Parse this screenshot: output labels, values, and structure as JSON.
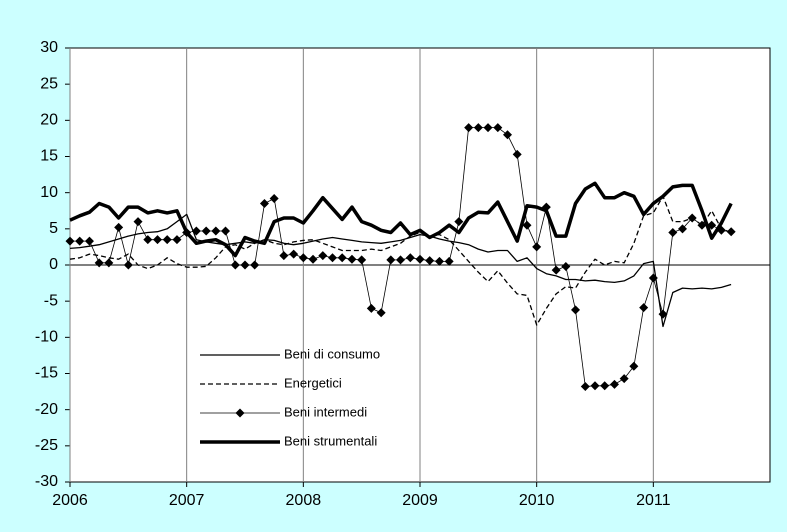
{
  "chart_data": {
    "type": "line",
    "x": [
      2006,
      2006.083,
      2006.167,
      2006.25,
      2006.333,
      2006.417,
      2006.5,
      2006.583,
      2006.667,
      2006.75,
      2006.833,
      2006.917,
      2007,
      2007.083,
      2007.167,
      2007.25,
      2007.333,
      2007.417,
      2007.5,
      2007.583,
      2007.667,
      2007.75,
      2007.833,
      2007.917,
      2008,
      2008.083,
      2008.167,
      2008.25,
      2008.333,
      2008.417,
      2008.5,
      2008.583,
      2008.667,
      2008.75,
      2008.833,
      2008.917,
      2009,
      2009.083,
      2009.167,
      2009.25,
      2009.333,
      2009.417,
      2009.5,
      2009.583,
      2009.667,
      2009.75,
      2009.833,
      2009.917,
      2010,
      2010.083,
      2010.167,
      2010.25,
      2010.333,
      2010.417,
      2010.5,
      2010.583,
      2010.667,
      2010.75,
      2010.833,
      2010.917,
      2011,
      2011.083,
      2011.167,
      2011.25,
      2011.333,
      2011.417,
      2011.5,
      2011.583,
      2011.667
    ],
    "series": [
      {
        "name": "Beni di consumo",
        "color": "#000000",
        "linestyle": "solid",
        "linewidth": 1.3,
        "marker": null,
        "values": [
          2.3,
          2.4,
          2.6,
          2.8,
          3.2,
          3.6,
          4.0,
          4.3,
          4.5,
          4.6,
          5.0,
          6.0,
          7.0,
          3.5,
          3.2,
          3.0,
          2.8,
          3.0,
          3.2,
          3.0,
          3.5,
          3.4,
          3.0,
          2.8,
          3.0,
          3.3,
          3.6,
          3.8,
          3.6,
          3.4,
          3.2,
          3.1,
          3.0,
          3.2,
          3.4,
          3.8,
          4.2,
          4.0,
          3.6,
          3.3,
          3.1,
          2.8,
          2.2,
          1.8,
          2.0,
          2.0,
          0.5,
          1.0,
          -0.5,
          -1.2,
          -1.5,
          -2.0,
          -2.0,
          -2.2,
          -2.1,
          -2.3,
          -2.4,
          -2.2,
          -1.5,
          0.2,
          0.5,
          -8.5,
          -3.8,
          -3.2,
          -3.3,
          -3.2,
          -3.3,
          -3.1,
          -2.7
        ]
      },
      {
        "name": "Energetici",
        "color": "#000000",
        "linestyle": "dashed",
        "linewidth": 1.3,
        "marker": null,
        "values": [
          0.8,
          1.0,
          1.5,
          1.3,
          1.0,
          0.8,
          1.5,
          0,
          -0.5,
          0,
          1.0,
          0.2,
          -0.3,
          -0.3,
          -0.2,
          1.0,
          2.5,
          2.8,
          2.2,
          3.0,
          3.5,
          3.0,
          2.8,
          3.2,
          3.4,
          3.5,
          3.0,
          2.5,
          2.0,
          2.0,
          2.0,
          2.2,
          2.0,
          2.5,
          3.0,
          4.0,
          4.5,
          4.0,
          4.2,
          3.5,
          2.0,
          0.5,
          -1.0,
          -2.3,
          -0.8,
          -2.5,
          -4.0,
          -4.2,
          -8.3,
          -6.0,
          -4.0,
          -3.0,
          -3.2,
          -1.0,
          0.8,
          0,
          0.5,
          0.3,
          3.0,
          6.8,
          7.2,
          9.5,
          6.0,
          6.0,
          6.5,
          5.5,
          7.5,
          5.0,
          4.5
        ]
      },
      {
        "name": "Beni intermedi",
        "color": "#000000",
        "linestyle": "solid",
        "linewidth": 0.8,
        "marker": "diamond",
        "values": [
          3.3,
          3.3,
          3.3,
          0.3,
          0.3,
          5.2,
          0,
          6.0,
          3.5,
          3.5,
          3.5,
          3.5,
          4.5,
          4.7,
          4.7,
          4.7,
          4.7,
          0,
          0,
          0,
          8.5,
          9.2,
          1.3,
          1.5,
          1.0,
          0.8,
          1.3,
          1.0,
          1.0,
          0.8,
          0.7,
          -6.0,
          -6.6,
          0.7,
          0.7,
          1.0,
          0.8,
          0.6,
          0.5,
          0.5,
          6.0,
          19.0,
          19.0,
          19.0,
          19.0,
          18.0,
          15.3,
          5.5,
          2.5,
          8.0,
          -0.7,
          -0.2,
          -6.2,
          -16.8,
          -16.7,
          -16.7,
          -16.5,
          -15.7,
          -14.0,
          -5.9,
          -1.8,
          -6.8,
          4.5,
          5.0,
          6.5,
          5.5,
          5.5,
          4.8,
          4.6
        ]
      },
      {
        "name": "Beni strumentali",
        "color": "#000000",
        "linestyle": "solid",
        "linewidth": 3.5,
        "marker": null,
        "values": [
          6.2,
          6.8,
          7.3,
          8.5,
          8.0,
          6.5,
          8.0,
          8.0,
          7.2,
          7.5,
          7.2,
          7.5,
          4.5,
          3.0,
          3.3,
          3.5,
          2.8,
          1.3,
          3.8,
          3.3,
          3.0,
          6.0,
          6.5,
          6.5,
          5.8,
          7.5,
          9.3,
          7.8,
          6.3,
          8.0,
          6.0,
          5.5,
          4.8,
          4.5,
          5.8,
          4.2,
          4.8,
          3.8,
          4.5,
          5.5,
          4.5,
          6.5,
          7.3,
          7.2,
          8.7,
          6.0,
          3.3,
          8.2,
          8.0,
          7.5,
          4.0,
          4.0,
          8.5,
          10.5,
          11.3,
          9.3,
          9.3,
          10.0,
          9.5,
          7.0,
          8.5,
          9.5,
          10.8,
          11.0,
          11.0,
          7.5,
          3.7,
          5.8,
          8.5
        ]
      }
    ],
    "xlim": [
      2006,
      2012
    ],
    "xticks": [
      2006,
      2007,
      2008,
      2009,
      2010,
      2011
    ],
    "ylim": [
      -30,
      30
    ],
    "yticks": [
      -30,
      -25,
      -20,
      -15,
      -10,
      -5,
      0,
      5,
      10,
      15,
      20,
      25,
      30
    ],
    "grid": "x",
    "legend": "lower left"
  }
}
